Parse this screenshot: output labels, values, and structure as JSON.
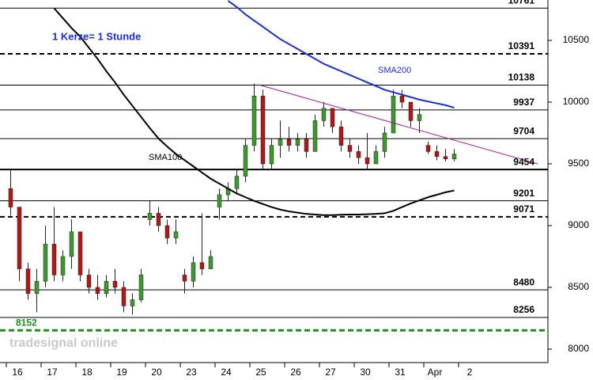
{
  "chart_data": {
    "type": "candlestick",
    "subtitle": "1 Kerze= 1 Stunde",
    "watermark": "tradesignal online",
    "categories": [
      "16",
      "17",
      "18",
      "19",
      "20",
      "23",
      "24",
      "25",
      "26",
      "27",
      "30",
      "31",
      "Apr",
      "2"
    ],
    "open": [
      9300,
      9150,
      8650,
      8450,
      8550,
      8850,
      8600,
      8750,
      8950,
      8600,
      8500,
      8450,
      8550,
      8500,
      8350,
      8400,
      9050,
      9100,
      9000,
      8900,
      8600,
      8550,
      8700,
      8650,
      9150,
      9250,
      9300,
      9400,
      9650,
      10050,
      9500,
      9650,
      9700,
      9650,
      9700,
      9600,
      9850,
      9950,
      9800,
      9650,
      9600,
      9550,
      9500,
      9600,
      9750,
      10050,
      10000,
      9850,
      9650,
      9600,
      9560,
      9540
    ],
    "high": [
      9450,
      9150,
      8700,
      8650,
      9000,
      9150,
      8800,
      9050,
      8950,
      8650,
      8600,
      8600,
      8650,
      8550,
      8450,
      8650,
      9200,
      9150,
      9050,
      9050,
      8650,
      8750,
      9100,
      8800,
      9300,
      9350,
      9450,
      9700,
      10150,
      10100,
      9700,
      9850,
      9800,
      9750,
      9750,
      9900,
      10000,
      9950,
      9850,
      9700,
      9650,
      9750,
      9650,
      9800,
      10100,
      10100,
      10000,
      9950,
      9680,
      9650,
      9620,
      9620
    ],
    "low": [
      9080,
      8550,
      8400,
      8300,
      8500,
      8550,
      8550,
      8650,
      8550,
      8450,
      8400,
      8420,
      8450,
      8300,
      8280,
      8380,
      9000,
      8950,
      8850,
      8850,
      8450,
      8500,
      8600,
      8650,
      9050,
      9200,
      9250,
      9350,
      9600,
      9450,
      9450,
      9550,
      9600,
      9600,
      9550,
      9600,
      9800,
      9750,
      9600,
      9550,
      9500,
      9450,
      9500,
      9550,
      9750,
      9950,
      9800,
      9750,
      9580,
      9530,
      9520,
      9520
    ],
    "close": [
      9150,
      8650,
      8450,
      8550,
      8850,
      8600,
      8750,
      8950,
      8600,
      8500,
      8450,
      8550,
      8500,
      8350,
      8400,
      8600,
      9100,
      9000,
      8900,
      8950,
      8550,
      8700,
      8650,
      8750,
      9250,
      9300,
      9400,
      9650,
      10050,
      9500,
      9650,
      9700,
      9650,
      9700,
      9600,
      9850,
      9950,
      9800,
      9650,
      9600,
      9550,
      9500,
      9600,
      9750,
      10050,
      10000,
      9850,
      9900,
      9600,
      9560,
      9540,
      9580
    ],
    "up_color": "#3c9a2c",
    "down_color": "#b01818",
    "lines": [
      {
        "name": "SMA100",
        "color": "#000000",
        "values": [
          null,
          null,
          null,
          null,
          null,
          10760,
          10680,
          10600,
          10530,
          10440,
          10350,
          10250,
          10160,
          10060,
          9970,
          9880,
          9790,
          9705,
          9640,
          9580,
          9530,
          9480,
          9430,
          9380,
          9340,
          9300,
          9260,
          9230,
          9200,
          9175,
          9150,
          9130,
          9115,
          9105,
          9095,
          9090,
          9085,
          9085,
          9088,
          9090,
          9090,
          9092,
          9095,
          9100,
          9120,
          9150,
          9180,
          9205,
          9230,
          9250,
          9270,
          9285
        ]
      },
      {
        "name": "SMA200",
        "color": "#1a2fd0",
        "values": [
          null,
          null,
          null,
          null,
          null,
          null,
          null,
          null,
          null,
          null,
          null,
          null,
          null,
          null,
          null,
          null,
          null,
          null,
          null,
          null,
          null,
          null,
          null,
          null,
          null,
          10820,
          10770,
          10710,
          10660,
          10610,
          10560,
          10510,
          10470,
          10430,
          10390,
          10350,
          10310,
          10280,
          10250,
          10220,
          10190,
          10160,
          10130,
          10100,
          10080,
          10060,
          10040,
          10020,
          10005,
          9990,
          9975,
          9955
        ]
      }
    ],
    "levels": [
      {
        "value": 10761,
        "style": "solid"
      },
      {
        "value": 10391,
        "style": "dashed"
      },
      {
        "value": 10138,
        "style": "solid"
      },
      {
        "value": 9937,
        "style": "solid"
      },
      {
        "value": 9704,
        "style": "solid"
      },
      {
        "value": 9454,
        "style": "thick"
      },
      {
        "value": 9201,
        "style": "solid"
      },
      {
        "value": 9071,
        "style": "dashed"
      },
      {
        "value": 8480,
        "style": "solid"
      },
      {
        "value": 8256,
        "style": "solid"
      },
      {
        "value": 8152,
        "style": "green"
      }
    ],
    "ylim": [
      7891,
      10827
    ],
    "yticks": [
      8000,
      8500,
      9000,
      9500,
      10000,
      10500
    ]
  }
}
